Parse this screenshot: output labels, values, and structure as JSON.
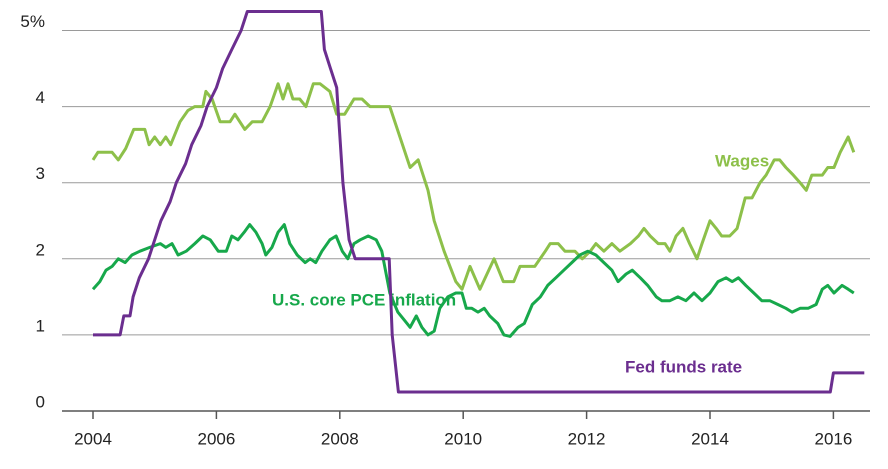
{
  "chart_data": {
    "type": "line",
    "xlim": [
      2003.5,
      2016.7
    ],
    "xticks": [
      2004,
      2006,
      2008,
      2010,
      2012,
      2014,
      2016
    ],
    "ylim": [
      0,
      5.25
    ],
    "yticks": [
      0,
      1,
      2,
      3,
      4,
      {
        "value": 5,
        "label": "5%"
      }
    ],
    "grid": true,
    "series": [
      {
        "name": "Wages",
        "color": "#8dc04a",
        "x": [
          2004.0,
          2004.08,
          2004.31,
          2004.41,
          2004.53,
          2004.66,
          2004.84,
          2004.91,
          2005.0,
          2005.09,
          2005.18,
          2005.26,
          2005.41,
          2005.54,
          2005.65,
          2005.78,
          2005.83,
          2005.93,
          2006.06,
          2006.22,
          2006.3,
          2006.46,
          2006.58,
          2006.74,
          2006.87,
          2007.0,
          2007.08,
          2007.16,
          2007.24,
          2007.35,
          2007.45,
          2007.57,
          2007.68,
          2007.84,
          2007.95,
          2008.08,
          2008.23,
          2008.36,
          2008.49,
          2008.81,
          2009.14,
          2009.27,
          2009.43,
          2009.53,
          2009.69,
          2009.88,
          2009.98,
          2010.11,
          2010.27,
          2010.5,
          2010.65,
          2010.82,
          2010.92,
          2011.16,
          2011.33,
          2011.41,
          2011.54,
          2011.65,
          2011.81,
          2011.93,
          2012.06,
          2012.15,
          2012.28,
          2012.41,
          2012.54,
          2012.71,
          2012.84,
          2012.93,
          2013.03,
          2013.16,
          2013.27,
          2013.35,
          2013.45,
          2013.56,
          2013.67,
          2013.79,
          2013.87,
          2014.0,
          2014.1,
          2014.19,
          2014.32,
          2014.44,
          2014.57,
          2014.68,
          2014.81,
          2014.91,
          2015.04,
          2015.13,
          2015.23,
          2015.35,
          2015.46,
          2015.56,
          2015.65,
          2015.82,
          2015.91,
          2016.01,
          2016.11,
          2016.24,
          2016.33
        ],
        "values": [
          3.3,
          3.4,
          3.4,
          3.3,
          3.45,
          3.7,
          3.7,
          3.5,
          3.6,
          3.5,
          3.6,
          3.5,
          3.8,
          3.95,
          4.0,
          4.0,
          4.2,
          4.1,
          3.8,
          3.8,
          3.9,
          3.7,
          3.8,
          3.8,
          4.0,
          4.3,
          4.1,
          4.3,
          4.1,
          4.1,
          4.0,
          4.3,
          4.3,
          4.2,
          3.9,
          3.9,
          4.1,
          4.1,
          4.0,
          4.0,
          3.2,
          3.3,
          2.9,
          2.5,
          2.1,
          1.7,
          1.6,
          1.9,
          1.6,
          2.0,
          1.7,
          1.7,
          1.9,
          1.9,
          2.1,
          2.2,
          2.2,
          2.1,
          2.1,
          2.0,
          2.1,
          2.2,
          2.1,
          2.2,
          2.1,
          2.2,
          2.3,
          2.4,
          2.3,
          2.2,
          2.2,
          2.1,
          2.3,
          2.4,
          2.2,
          2.0,
          2.2,
          2.5,
          2.4,
          2.3,
          2.3,
          2.4,
          2.8,
          2.8,
          3.0,
          3.1,
          3.3,
          3.3,
          3.2,
          3.1,
          3.0,
          2.9,
          3.1,
          3.1,
          3.2,
          3.2,
          3.4,
          3.6,
          3.4
        ]
      },
      {
        "name": "U.S. core PCE inflation",
        "color": "#17a84b",
        "x": [
          2004.0,
          2004.11,
          2004.21,
          2004.31,
          2004.41,
          2004.52,
          2004.63,
          2004.76,
          2004.92,
          2005.09,
          2005.18,
          2005.28,
          2005.38,
          2005.51,
          2005.65,
          2005.78,
          2005.9,
          2006.03,
          2006.16,
          2006.25,
          2006.35,
          2006.45,
          2006.54,
          2006.64,
          2006.74,
          2006.8,
          2006.9,
          2007.0,
          2007.1,
          2007.19,
          2007.31,
          2007.44,
          2007.52,
          2007.61,
          2007.71,
          2007.84,
          2007.94,
          2008.04,
          2008.13,
          2008.23,
          2008.33,
          2008.46,
          2008.59,
          2008.68,
          2008.81,
          2008.94,
          2009.04,
          2009.14,
          2009.24,
          2009.33,
          2009.43,
          2009.53,
          2009.62,
          2009.75,
          2009.88,
          2009.98,
          2010.05,
          2010.14,
          2010.24,
          2010.34,
          2010.43,
          2010.56,
          2010.66,
          2010.76,
          2010.89,
          2010.99,
          2011.12,
          2011.25,
          2011.37,
          2011.5,
          2011.63,
          2011.76,
          2011.89,
          2012.02,
          2012.15,
          2012.28,
          2012.41,
          2012.51,
          2012.64,
          2012.74,
          2012.87,
          2012.99,
          2013.13,
          2013.22,
          2013.35,
          2013.48,
          2013.61,
          2013.74,
          2013.87,
          2014.0,
          2014.13,
          2014.26,
          2014.36,
          2014.46,
          2014.58,
          2014.71,
          2014.84,
          2014.97,
          2015.1,
          2015.23,
          2015.33,
          2015.46,
          2015.59,
          2015.72,
          2015.82,
          2015.91,
          2016.01,
          2016.14,
          2016.24,
          2016.33
        ],
        "values": [
          1.6,
          1.7,
          1.85,
          1.9,
          2.0,
          1.95,
          2.05,
          2.1,
          2.15,
          2.2,
          2.15,
          2.2,
          2.05,
          2.1,
          2.2,
          2.3,
          2.25,
          2.1,
          2.1,
          2.3,
          2.25,
          2.35,
          2.45,
          2.35,
          2.2,
          2.05,
          2.15,
          2.35,
          2.45,
          2.2,
          2.05,
          1.95,
          2.0,
          1.95,
          2.1,
          2.25,
          2.3,
          2.1,
          2.0,
          2.2,
          2.25,
          2.3,
          2.25,
          2.1,
          1.55,
          1.3,
          1.2,
          1.1,
          1.25,
          1.1,
          1.0,
          1.05,
          1.35,
          1.5,
          1.55,
          1.55,
          1.35,
          1.35,
          1.3,
          1.35,
          1.25,
          1.15,
          1.0,
          0.98,
          1.1,
          1.15,
          1.4,
          1.5,
          1.65,
          1.75,
          1.85,
          1.95,
          2.05,
          2.1,
          2.05,
          1.95,
          1.85,
          1.7,
          1.8,
          1.85,
          1.75,
          1.65,
          1.5,
          1.45,
          1.45,
          1.5,
          1.45,
          1.55,
          1.45,
          1.55,
          1.7,
          1.75,
          1.7,
          1.75,
          1.65,
          1.55,
          1.45,
          1.45,
          1.4,
          1.35,
          1.3,
          1.35,
          1.35,
          1.4,
          1.6,
          1.65,
          1.55,
          1.65,
          1.6,
          1.55
        ]
      },
      {
        "name": "Fed funds rate",
        "color": "#6b2e8f",
        "x": [
          2004.0,
          2004.44,
          2004.5,
          2004.6,
          2004.65,
          2004.75,
          2004.9,
          2005.0,
          2005.1,
          2005.25,
          2005.35,
          2005.5,
          2005.6,
          2005.75,
          2005.85,
          2006.0,
          2006.1,
          2006.25,
          2006.4,
          2006.5,
          2007.7,
          2007.75,
          2007.85,
          2007.95,
          2008.05,
          2008.15,
          2008.25,
          2008.8,
          2008.85,
          2008.95,
          2015.95,
          2016.0,
          2016.5
        ],
        "values": [
          1,
          1,
          1.25,
          1.25,
          1.5,
          1.75,
          2.0,
          2.25,
          2.5,
          2.75,
          3.0,
          3.25,
          3.5,
          3.75,
          4.0,
          4.25,
          4.5,
          4.75,
          5.0,
          5.25,
          5.25,
          4.75,
          4.5,
          4.25,
          3.0,
          2.25,
          2.0,
          2.0,
          1.0,
          0.25,
          0.25,
          0.5,
          0.5
        ]
      }
    ]
  }
}
